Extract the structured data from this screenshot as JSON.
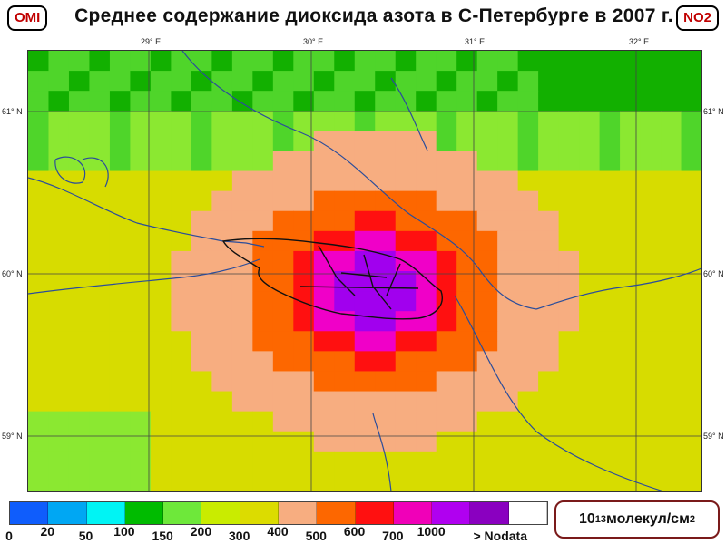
{
  "header": {
    "left_badge": "OMI",
    "title": "Среднее  содержание  диоксида  азота  в  С-Петербурге  в  2007  г.",
    "right_badge": "NO2"
  },
  "map": {
    "longitude_labels": [
      "29° E",
      "30° E",
      "31° E",
      "32° E"
    ],
    "latitude_labels": [
      "61° N",
      "60° N",
      "59° N"
    ],
    "field_colors": {
      "dark_green": "#12b000",
      "green": "#4fd52a",
      "light_green": "#8be831",
      "yellow": "#d7dc00",
      "salmon": "#f7ad80",
      "orange": "#fd6700",
      "red": "#ff1010",
      "magenta": "#f000c8",
      "violet": "#a100ee"
    }
  },
  "legend": {
    "colors": [
      "#0f5dfc",
      "#00a7f3",
      "#00f4f4",
      "#00bb00",
      "#6ee83a",
      "#c9ec00",
      "#dcdc00",
      "#f7ad80",
      "#fd6700",
      "#ff1010",
      "#f000b8",
      "#b000f0",
      "#8a00c0",
      "#ffffff"
    ],
    "ticks": [
      "0",
      "20",
      "50",
      "100",
      "150",
      "200",
      "300",
      "400",
      "500",
      "600",
      "700",
      "1000",
      "> Nodata"
    ],
    "unit_base": "10",
    "unit_exponent": "13",
    "unit_text": " молекул/см",
    "unit_power": "2"
  }
}
